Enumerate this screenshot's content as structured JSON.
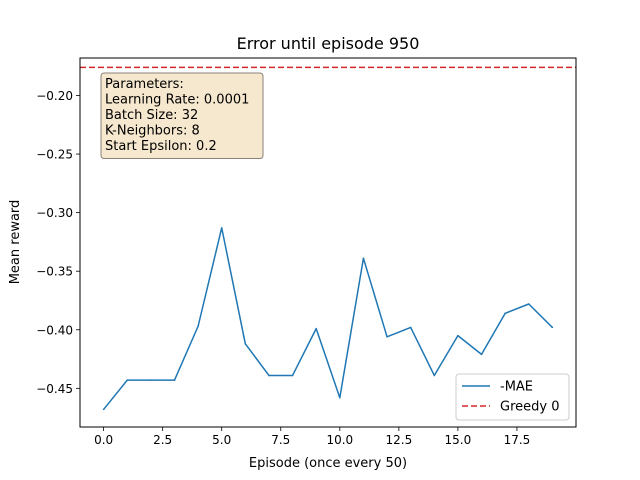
{
  "chart_data": {
    "type": "line",
    "title": "Error until episode 950",
    "xlabel": "Episode (once every 50)",
    "ylabel": "Mean reward",
    "xlim": [
      -1.0,
      20.0
    ],
    "ylim": [
      -0.483,
      -0.168
    ],
    "x_ticks": [
      0,
      2.5,
      5,
      7.5,
      10,
      12.5,
      15,
      17.5
    ],
    "x_tick_labels": [
      "0.0",
      "2.5",
      "5.0",
      "7.5",
      "10.0",
      "12.5",
      "15.0",
      "17.5"
    ],
    "y_ticks": [
      -0.45,
      -0.4,
      -0.35,
      -0.3,
      -0.25,
      -0.2
    ],
    "y_tick_labels": [
      "−0.45",
      "−0.40",
      "−0.35",
      "−0.30",
      "−0.25",
      "−0.20"
    ],
    "grid": false,
    "legend_position": "lower-right",
    "series": [
      {
        "name": "-MAE",
        "style": "solid",
        "color": "#1f77b4",
        "x": [
          0,
          1,
          2,
          3,
          4,
          5,
          6,
          7,
          8,
          9,
          10,
          11,
          12,
          13,
          14,
          15,
          16,
          17,
          18,
          19
        ],
        "y": [
          -0.468,
          -0.443,
          -0.443,
          -0.443,
          -0.397,
          -0.313,
          -0.412,
          -0.439,
          -0.439,
          -0.399,
          -0.458,
          -0.339,
          -0.406,
          -0.398,
          -0.439,
          -0.405,
          -0.421,
          -0.386,
          -0.378,
          -0.398
        ]
      },
      {
        "name": "Greedy 0",
        "style": "dashed",
        "color": "#d62728",
        "y_constant": -0.176
      }
    ],
    "annotation": {
      "lines": [
        "Parameters:",
        "Learning Rate: 0.0001",
        "Batch Size: 32",
        "K-Neighbors: 8",
        "Start Epsilon: 0.2"
      ],
      "background": "#f5e6c9",
      "border": "#8b8178"
    }
  }
}
